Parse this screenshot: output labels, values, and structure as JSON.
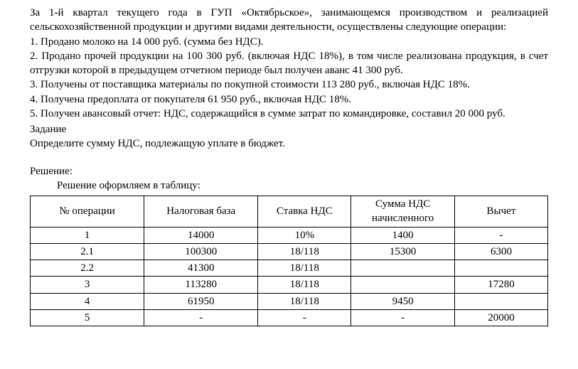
{
  "text": {
    "intro": "За 1-й квартал текущего года в ГУП «Октябрьское», занимающемся производством и реализацией сельскохозяйственной продукции и другими видами деятельности, осуществлены следующие операции:",
    "p1": "1. Продано молоко на 14 000 руб. (сумма без НДС).",
    "p2": "2. Продано прочей продукции на 100 300 руб. (включая НДС 18%), в том числе реализована продукция, в счет отгрузки которой в предыдущем отчетном периоде был получен аванс 41 300 руб.",
    "p3": "3. Получены от поставщика материалы по покупной стоимости 113 280 руб., включая НДС 18%.",
    "p4": "4. Получена предоплата от покупателя 61 950 руб., включая НДС 18%.",
    "p5": "5. Получен авансовый отчет: НДС, содержащийся в сумме затрат по командировке, составил 20 000 руб.",
    "task_label": "Задание",
    "task_text": "Определите сумму НДС, подлежащую уплате в бюджет.",
    "solution_label": "Решение:",
    "solution_intro": "Решение оформляем в таблицу:"
  },
  "table": {
    "columns": {
      "op": "№ операции",
      "base": "Налоговая база",
      "rate": "Ставка НДС",
      "vat": "Сумма НДС начисленного",
      "deduct": "Вычет"
    },
    "rows": [
      {
        "op": "1",
        "base": "14000",
        "rate": "10%",
        "vat": "1400",
        "deduct": "-"
      },
      {
        "op": "2.1",
        "base": "100300",
        "rate": "18/118",
        "vat": "15300",
        "deduct": "6300"
      },
      {
        "op": "2.2",
        "base": "41300",
        "rate": "18/118",
        "vat": "",
        "deduct": ""
      },
      {
        "op": "3",
        "base": "113280",
        "rate": "18/118",
        "vat": "",
        "deduct": "17280"
      },
      {
        "op": "4",
        "base": "61950",
        "rate": "18/118",
        "vat": "9450",
        "deduct": ""
      },
      {
        "op": "5",
        "base": "-",
        "rate": "-",
        "vat": "-",
        "deduct": "20000"
      }
    ]
  },
  "styles": {
    "background_color": "#ffffff",
    "text_color": "#000000",
    "border_color": "#000000",
    "font_family": "Times New Roman",
    "body_fontsize": 15,
    "table_fontsize": 15
  }
}
